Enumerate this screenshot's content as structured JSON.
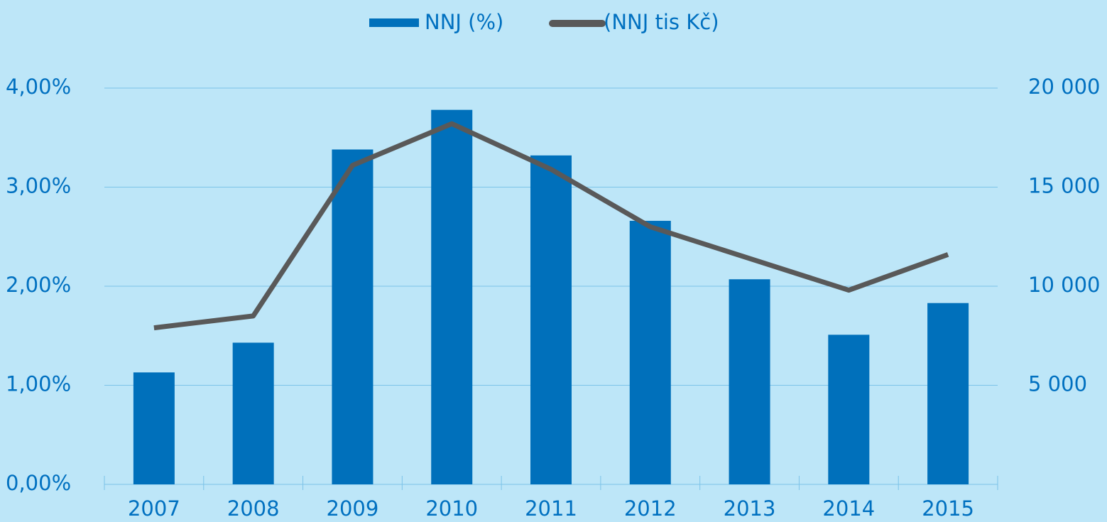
{
  "chart_data": {
    "type": "bar",
    "categories": [
      "2007",
      "2008",
      "2009",
      "2010",
      "2011",
      "2012",
      "2013",
      "2014",
      "2015"
    ],
    "series": [
      {
        "name": "NNJ (%)",
        "type": "bar",
        "color": "#0070bb",
        "values": [
          1.13,
          1.43,
          3.38,
          3.78,
          3.32,
          2.66,
          2.07,
          1.51,
          1.83
        ]
      },
      {
        "name": "(NNJ tis Kč)",
        "type": "line",
        "axis": "y2",
        "color": "#595959",
        "values": [
          7900,
          8500,
          16100,
          18200,
          15900,
          13000,
          11400,
          9800,
          11600
        ]
      }
    ],
    "ylim": [
      0,
      4
    ],
    "yticks": [
      {
        "value": 0,
        "label": "0,00%"
      },
      {
        "value": 1,
        "label": "1,00%"
      },
      {
        "value": 2,
        "label": "2,00%"
      },
      {
        "value": 3,
        "label": "3,00%"
      },
      {
        "value": 4,
        "label": "4,00%"
      }
    ],
    "y2lim": [
      0,
      20000
    ],
    "y2ticks": [
      {
        "value": 5000,
        "label": "5 000"
      },
      {
        "value": 10000,
        "label": "10 000"
      },
      {
        "value": 15000,
        "label": "15 000"
      },
      {
        "value": 20000,
        "label": "20 000"
      }
    ],
    "grid": true,
    "legend": "top"
  }
}
